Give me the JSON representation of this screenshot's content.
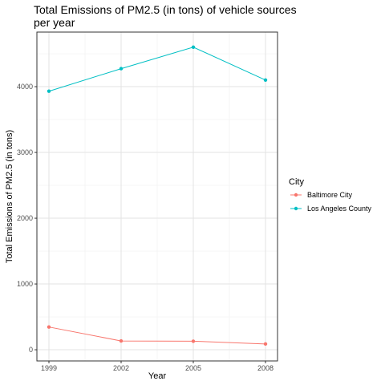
{
  "chart_data": {
    "type": "line",
    "title": "Total Emissions of PM2.5 (in tons) of vehicle sources per year",
    "title_lines": [
      "Total Emissions of PM2.5 (in tons) of vehicle sources",
      "per year"
    ],
    "xlabel": "Year",
    "ylabel": "Total Emissions of PM2.5 (in tons)",
    "x": [
      1999,
      2002,
      2005,
      2008
    ],
    "x_ticks": [
      "1999",
      "2002",
      "2005",
      "2008"
    ],
    "y_ticks": [
      0,
      1000,
      2000,
      3000,
      4000
    ],
    "xlim": [
      1998.5,
      2008.5
    ],
    "ylim": [
      -170,
      4830
    ],
    "grid": true,
    "legend_title": "City",
    "legend_position": "right",
    "series": [
      {
        "name": "Baltimore City",
        "color": "#F8766D",
        "values": [
          346,
          134,
          130,
          88
        ]
      },
      {
        "name": "Los Angeles County",
        "color": "#00BFC4",
        "values": [
          3931,
          4274,
          4601,
          4101
        ]
      }
    ]
  }
}
